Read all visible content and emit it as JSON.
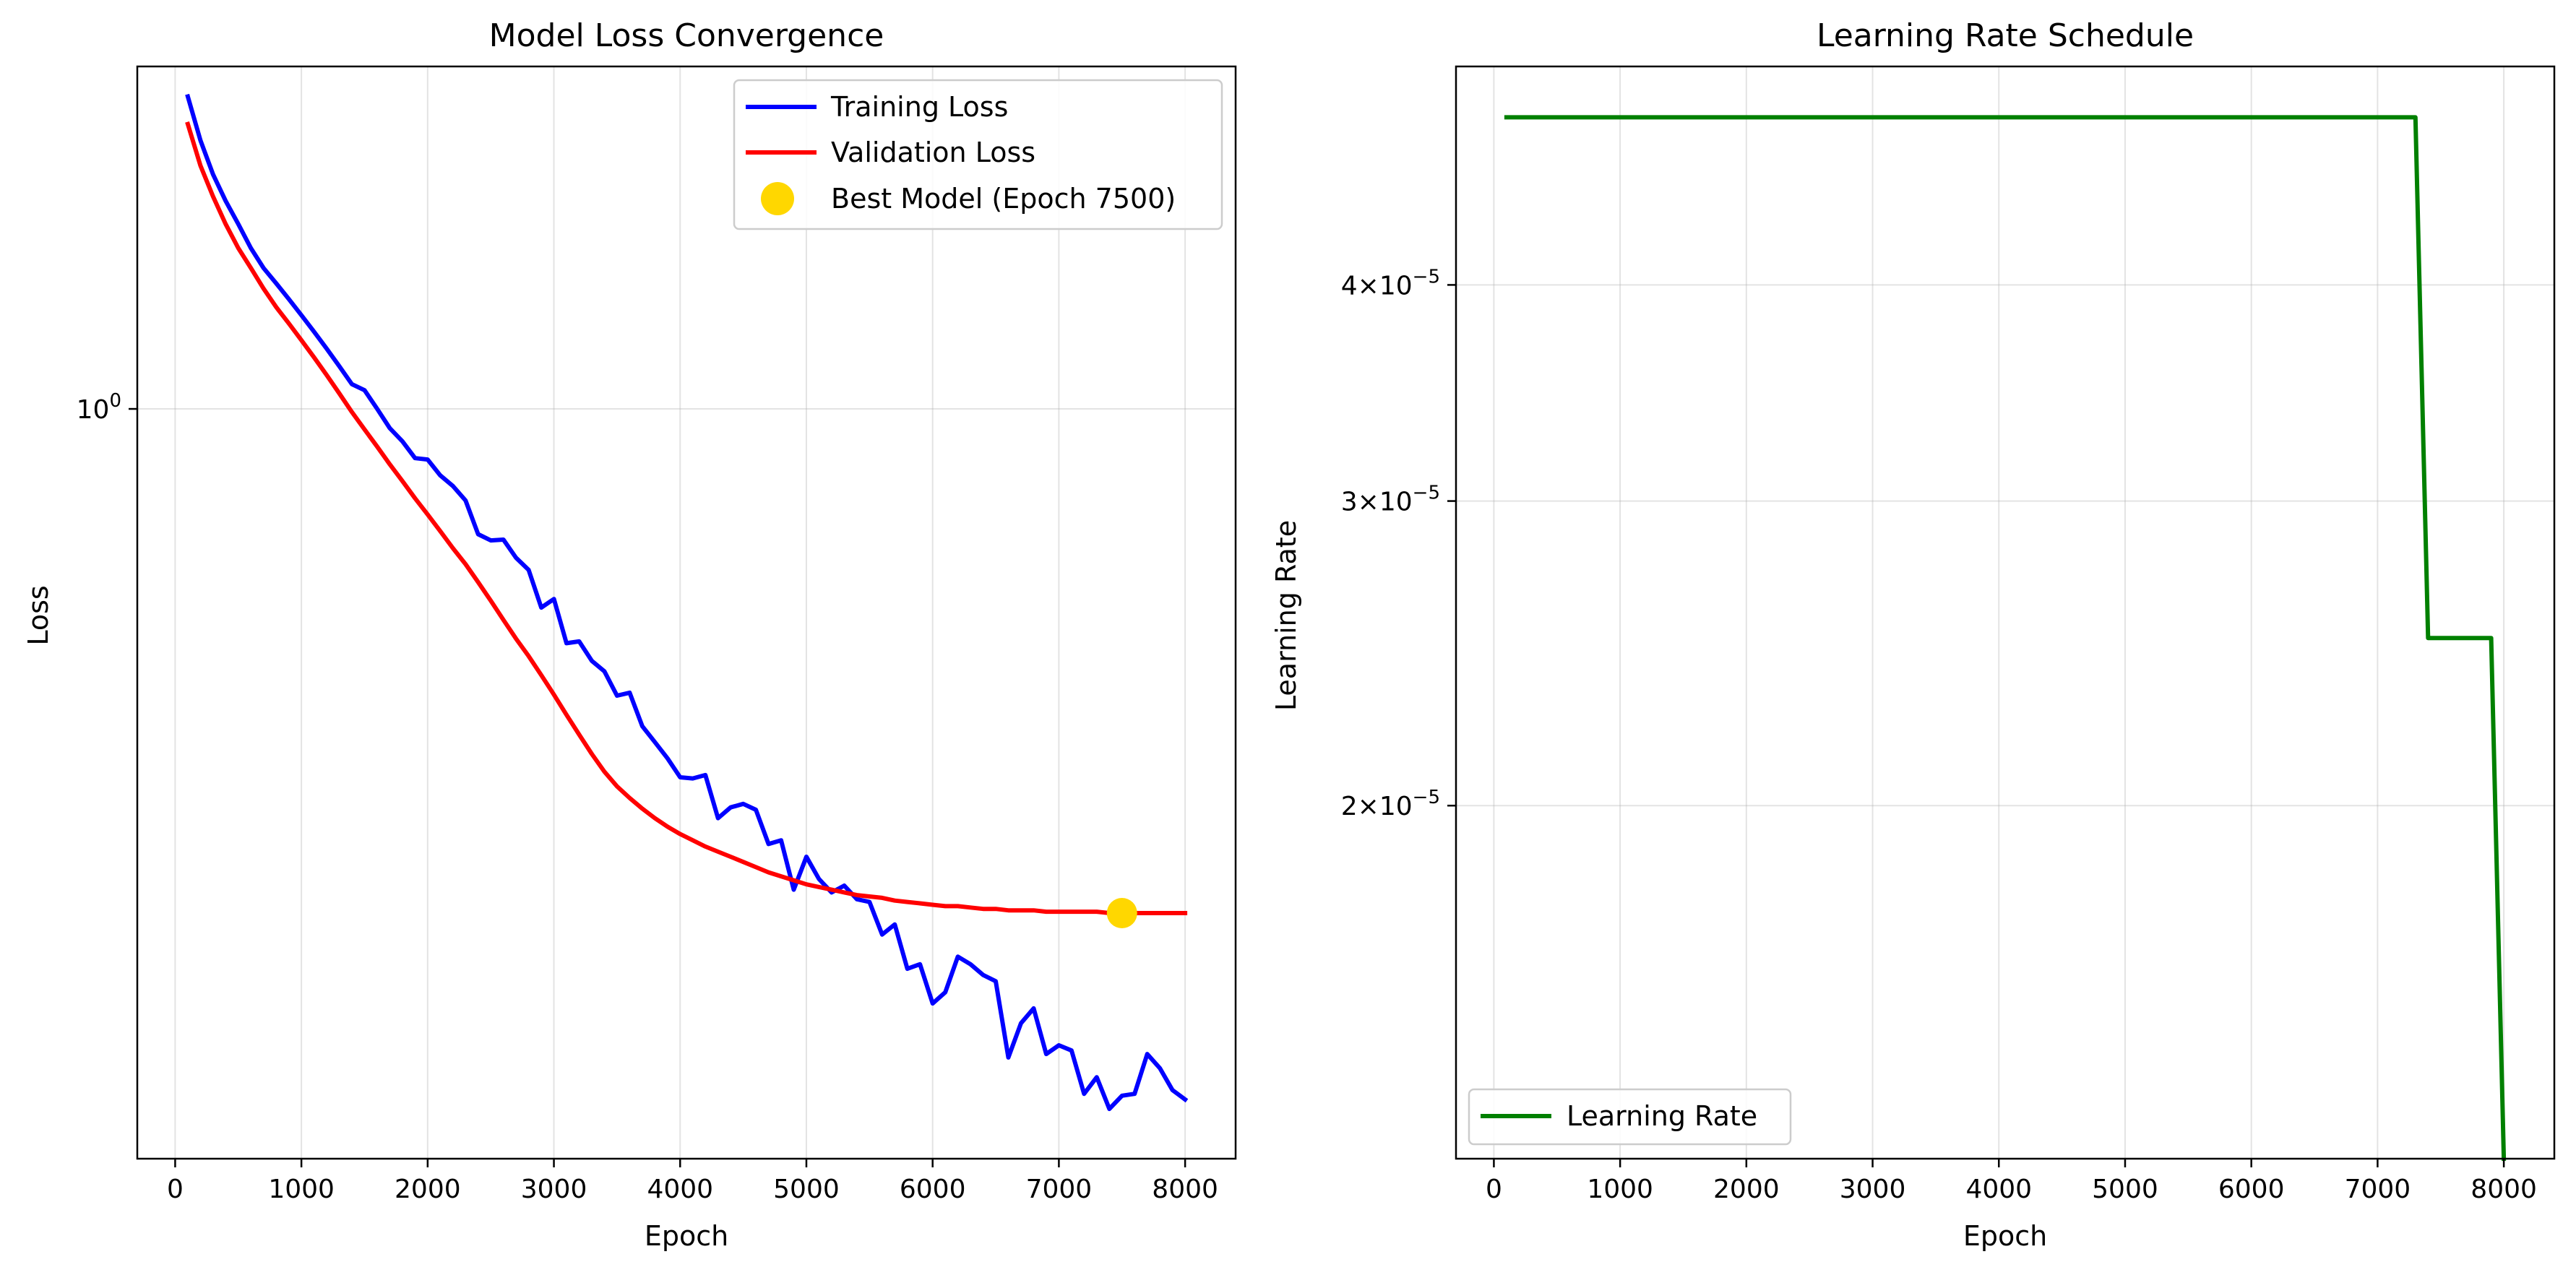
{
  "chart_data": [
    {
      "type": "line",
      "title": "Model Loss Convergence",
      "xlabel": "Epoch",
      "ylabel": "Loss",
      "yscale": "log",
      "xlim": [
        -300,
        8400
      ],
      "ylim": [
        0.305,
        1.72
      ],
      "grid": true,
      "legend_position": "top-right",
      "xticks": [
        0,
        1000,
        2000,
        3000,
        4000,
        5000,
        6000,
        7000,
        8000
      ],
      "yticks": [
        {
          "value": 1.0,
          "base": "10",
          "exp": "0"
        }
      ],
      "series": [
        {
          "name": "Training Loss",
          "color": "#0000ff",
          "x": [
            100,
            200,
            300,
            400,
            500,
            600,
            700,
            800,
            900,
            1000,
            1100,
            1200,
            1300,
            1400,
            1500,
            1600,
            1700,
            1800,
            1900,
            2000,
            2100,
            2200,
            2300,
            2400,
            2500,
            2600,
            2700,
            2800,
            2900,
            3000,
            3100,
            3200,
            3300,
            3400,
            3500,
            3600,
            3700,
            3800,
            3900,
            4000,
            4100,
            4200,
            4300,
            4400,
            4500,
            4600,
            4700,
            4800,
            4900,
            5000,
            5100,
            5200,
            5300,
            5400,
            5500,
            5600,
            5700,
            5800,
            5900,
            6000,
            6100,
            6200,
            6300,
            6400,
            6500,
            6600,
            6700,
            6800,
            6900,
            7000,
            7100,
            7200,
            7300,
            7400,
            7500,
            7600,
            7700,
            7800,
            7900,
            8000
          ],
          "values": [
            1.64,
            1.53,
            1.45,
            1.39,
            1.34,
            1.29,
            1.25,
            1.22,
            1.19,
            1.16,
            1.13,
            1.1,
            1.07,
            1.04,
            1.03,
            1.0,
            0.97,
            0.95,
            0.925,
            0.923,
            0.9,
            0.885,
            0.865,
            0.82,
            0.812,
            0.813,
            0.79,
            0.775,
            0.73,
            0.74,
            0.69,
            0.692,
            0.671,
            0.66,
            0.635,
            0.638,
            0.605,
            0.59,
            0.575,
            0.558,
            0.557,
            0.56,
            0.523,
            0.532,
            0.535,
            0.53,
            0.502,
            0.505,
            0.467,
            0.492,
            0.475,
            0.465,
            0.47,
            0.46,
            0.458,
            0.435,
            0.442,
            0.412,
            0.415,
            0.39,
            0.397,
            0.42,
            0.415,
            0.408,
            0.404,
            0.358,
            0.378,
            0.387,
            0.36,
            0.365,
            0.362,
            0.338,
            0.347,
            0.33,
            0.337,
            0.338,
            0.36,
            0.352,
            0.34,
            0.335
          ]
        },
        {
          "name": "Validation Loss",
          "color": "#ff0000",
          "x": [
            100,
            200,
            300,
            400,
            500,
            600,
            700,
            800,
            900,
            1000,
            1100,
            1200,
            1300,
            1400,
            1500,
            1600,
            1700,
            1800,
            1900,
            2000,
            2100,
            2200,
            2300,
            2400,
            2500,
            2600,
            2700,
            2800,
            2900,
            3000,
            3100,
            3200,
            3300,
            3400,
            3500,
            3600,
            3700,
            3800,
            3900,
            4000,
            4100,
            4200,
            4300,
            4400,
            4500,
            4600,
            4700,
            4800,
            4900,
            5000,
            5100,
            5200,
            5300,
            5400,
            5500,
            5600,
            5700,
            5800,
            5900,
            6000,
            6100,
            6200,
            6300,
            6400,
            6500,
            6600,
            6700,
            6800,
            6900,
            7000,
            7100,
            7200,
            7300,
            7400,
            7500,
            7600,
            7700,
            7800,
            7900,
            8000
          ],
          "values": [
            1.57,
            1.47,
            1.4,
            1.34,
            1.29,
            1.25,
            1.21,
            1.175,
            1.145,
            1.115,
            1.085,
            1.055,
            1.025,
            0.995,
            0.968,
            0.942,
            0.916,
            0.892,
            0.868,
            0.846,
            0.824,
            0.802,
            0.782,
            0.76,
            0.738,
            0.716,
            0.695,
            0.676,
            0.656,
            0.636,
            0.616,
            0.597,
            0.579,
            0.563,
            0.55,
            0.54,
            0.531,
            0.523,
            0.516,
            0.51,
            0.505,
            0.5,
            0.496,
            0.492,
            0.488,
            0.484,
            0.48,
            0.477,
            0.474,
            0.471,
            0.469,
            0.467,
            0.465,
            0.463,
            0.462,
            0.461,
            0.459,
            0.458,
            0.457,
            0.456,
            0.455,
            0.455,
            0.454,
            0.453,
            0.453,
            0.452,
            0.452,
            0.452,
            0.451,
            0.451,
            0.451,
            0.451,
            0.451,
            0.45,
            0.45,
            0.45,
            0.45,
            0.45,
            0.45,
            0.45
          ]
        }
      ],
      "best_model": {
        "name": "Best Model (Epoch 7500)",
        "x": 7500,
        "y": 0.45,
        "color": "#ffd700"
      }
    },
    {
      "type": "line",
      "title": "Learning Rate Schedule",
      "xlabel": "Epoch",
      "ylabel": "Learning Rate",
      "yscale": "log",
      "xlim": [
        -300,
        8400
      ],
      "ylim": [
        1.25e-05,
        5.35e-05
      ],
      "grid": true,
      "legend_position": "bottom-left",
      "xticks": [
        0,
        1000,
        2000,
        3000,
        4000,
        5000,
        6000,
        7000,
        8000
      ],
      "yticks": [
        {
          "value": 4e-05,
          "mant": "4",
          "base": "10",
          "exp": "−5"
        },
        {
          "value": 3e-05,
          "mant": "3",
          "base": "10",
          "exp": "−5"
        },
        {
          "value": 2e-05,
          "mant": "2",
          "base": "10",
          "exp": "−5"
        }
      ],
      "series": [
        {
          "name": "Learning Rate",
          "color": "#008000",
          "x": [
            100,
            7300,
            7400,
            7900,
            8000
          ],
          "values": [
            5e-05,
            5e-05,
            2.5e-05,
            2.5e-05,
            1.25e-05
          ]
        }
      ]
    }
  ]
}
